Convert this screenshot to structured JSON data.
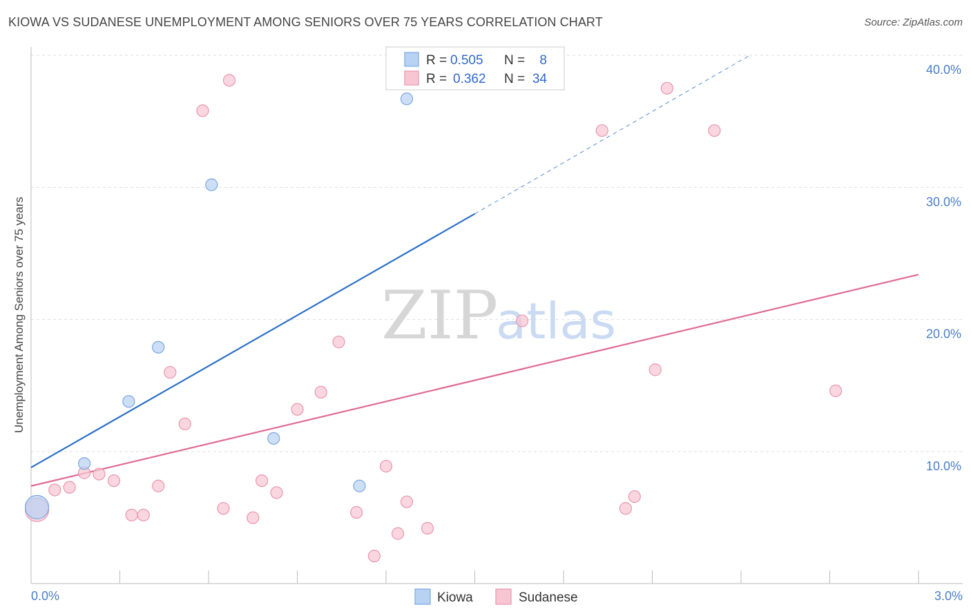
{
  "header": {
    "title": "KIOWA VS SUDANESE UNEMPLOYMENT AMONG SENIORS OVER 75 YEARS CORRELATION CHART",
    "source": "Source: ZipAtlas.com"
  },
  "watermark": {
    "zip": "ZIP",
    "atlas": "atlas"
  },
  "legend": {
    "r_label": "R =",
    "n_label": "N =",
    "kiowa": {
      "r": "0.505",
      "n": "8"
    },
    "sudanese": {
      "r": "0.362",
      "n": "34"
    }
  },
  "colors": {
    "kiowa_fill": "#b7d2f3",
    "kiowa_stroke": "#7aa6e0",
    "kiowa_line": "#2a6ec8",
    "sudanese_fill": "#f8c6d3",
    "sudanese_stroke": "#ea94ad",
    "sudanese_line": "#e06a92",
    "grid": "#dddddd",
    "tick_label": "#4a7cc9"
  },
  "chart_data": {
    "type": "scatter",
    "title": "KIOWA VS SUDANESE UNEMPLOYMENT AMONG SENIORS OVER 75 YEARS CORRELATION CHART",
    "xlabel": "",
    "ylabel": "Unemployment Among Seniors over 75 years",
    "xlim": [
      0.0,
      3.0
    ],
    "ylim": [
      0.0,
      40.0
    ],
    "x_tick_labels": [
      "0.0%",
      "3.0%"
    ],
    "y_ticks": [
      10,
      20,
      30,
      40
    ],
    "y_tick_labels": [
      "10.0%",
      "20.0%",
      "30.0%",
      "40.0%"
    ],
    "legend_position": "top-center",
    "series": [
      {
        "name": "Kiowa",
        "r": 0.505,
        "n": 8,
        "points": [
          {
            "x": 0.02,
            "y": 5.8,
            "big": true
          },
          {
            "x": 0.18,
            "y": 9.1
          },
          {
            "x": 0.33,
            "y": 13.8
          },
          {
            "x": 0.43,
            "y": 17.9
          },
          {
            "x": 0.61,
            "y": 30.2
          },
          {
            "x": 0.82,
            "y": 11.0
          },
          {
            "x": 1.11,
            "y": 7.4
          },
          {
            "x": 1.27,
            "y": 36.7
          }
        ],
        "trend": {
          "x0": 0.0,
          "y0": 8.8,
          "x1": 1.5,
          "y1": 28.0,
          "dash_x1": 2.43,
          "dash_y1": 40.0
        }
      },
      {
        "name": "Sudanese",
        "r": 0.362,
        "n": 34,
        "points": [
          {
            "x": 0.02,
            "y": 5.6,
            "big": true
          },
          {
            "x": 0.08,
            "y": 7.1
          },
          {
            "x": 0.13,
            "y": 7.3
          },
          {
            "x": 0.18,
            "y": 8.4
          },
          {
            "x": 0.23,
            "y": 8.3
          },
          {
            "x": 0.28,
            "y": 7.8
          },
          {
            "x": 0.34,
            "y": 5.2
          },
          {
            "x": 0.38,
            "y": 5.2
          },
          {
            "x": 0.43,
            "y": 7.4
          },
          {
            "x": 0.47,
            "y": 16.0
          },
          {
            "x": 0.52,
            "y": 12.1
          },
          {
            "x": 0.58,
            "y": 35.8
          },
          {
            "x": 0.65,
            "y": 5.7
          },
          {
            "x": 0.67,
            "y": 38.1
          },
          {
            "x": 0.75,
            "y": 5.0
          },
          {
            "x": 0.78,
            "y": 7.8
          },
          {
            "x": 0.83,
            "y": 6.9
          },
          {
            "x": 0.9,
            "y": 13.2
          },
          {
            "x": 0.98,
            "y": 14.5
          },
          {
            "x": 1.04,
            "y": 18.3
          },
          {
            "x": 1.1,
            "y": 5.4
          },
          {
            "x": 1.16,
            "y": 2.1
          },
          {
            "x": 1.2,
            "y": 8.9
          },
          {
            "x": 1.24,
            "y": 3.8
          },
          {
            "x": 1.27,
            "y": 6.2
          },
          {
            "x": 1.34,
            "y": 4.2
          },
          {
            "x": 1.66,
            "y": 19.9
          },
          {
            "x": 1.93,
            "y": 34.3
          },
          {
            "x": 2.01,
            "y": 5.7
          },
          {
            "x": 2.04,
            "y": 6.6
          },
          {
            "x": 2.11,
            "y": 16.2
          },
          {
            "x": 2.15,
            "y": 37.5
          },
          {
            "x": 2.31,
            "y": 34.3
          },
          {
            "x": 2.72,
            "y": 14.6
          }
        ],
        "trend": {
          "x0": 0.0,
          "y0": 7.4,
          "x1": 3.0,
          "y1": 23.4
        }
      }
    ]
  },
  "bottom_legend": [
    "Kiowa",
    "Sudanese"
  ]
}
